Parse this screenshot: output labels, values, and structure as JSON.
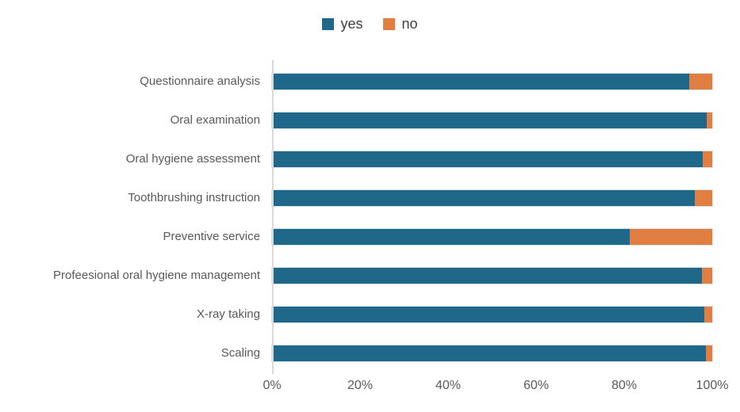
{
  "chart_data": {
    "type": "bar",
    "orientation": "horizontal",
    "stacked": true,
    "title": "",
    "xlabel": "",
    "ylabel": "",
    "xlim": [
      0,
      100
    ],
    "grid": false,
    "legend_position": "top-center",
    "categories": [
      "Questionnaire analysis",
      "Oral examination",
      "Oral hygiene assessment",
      "Toothbrushing instruction",
      "Preventive service",
      "Profeesional oral hygiene management",
      "X-ray taking",
      "Scaling"
    ],
    "series": [
      {
        "name": "yes",
        "color": "#20688A",
        "values": [
          94.8,
          98.8,
          97.9,
          96.1,
          81.3,
          97.6,
          98.2,
          98.6
        ]
      },
      {
        "name": "no",
        "color": "#E17E42",
        "values": [
          5.2,
          1.2,
          2.1,
          3.9,
          18.7,
          2.4,
          1.8,
          1.4
        ]
      }
    ],
    "x_axis": {
      "tick_labels": [
        "0%",
        "20%",
        "40%",
        "60%",
        "80%",
        "100%"
      ]
    },
    "axis_color": "#d9d9d9",
    "label_color": "#595959",
    "legend_text_color": "#404040"
  }
}
